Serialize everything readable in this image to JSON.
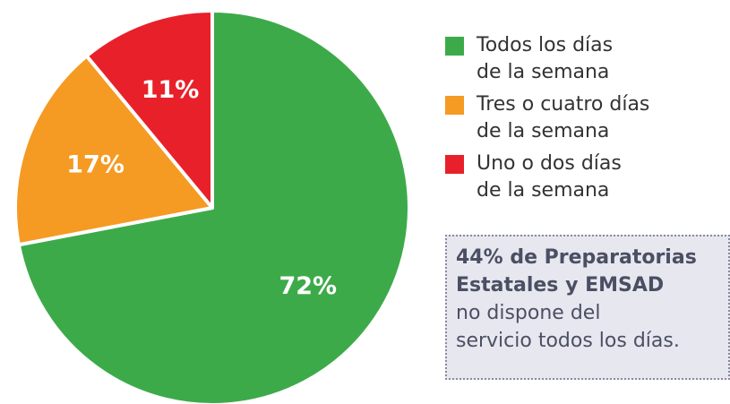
{
  "chart_data": {
    "type": "pie",
    "categories": [
      "Todos los días\nde la semana",
      "Tres o cuatro días\nde la semana",
      "Uno o dos días\nde la semana"
    ],
    "values": [
      72,
      17,
      11
    ],
    "value_labels": [
      "72%",
      "17%",
      "11%"
    ],
    "colors": [
      "#3daa4a",
      "#f59a23",
      "#e8202a"
    ],
    "annotation": {
      "bold": "44% de Preparatorias\nEstatales y EMSAD",
      "text": "no dispone del\nservicio todos los días."
    }
  }
}
